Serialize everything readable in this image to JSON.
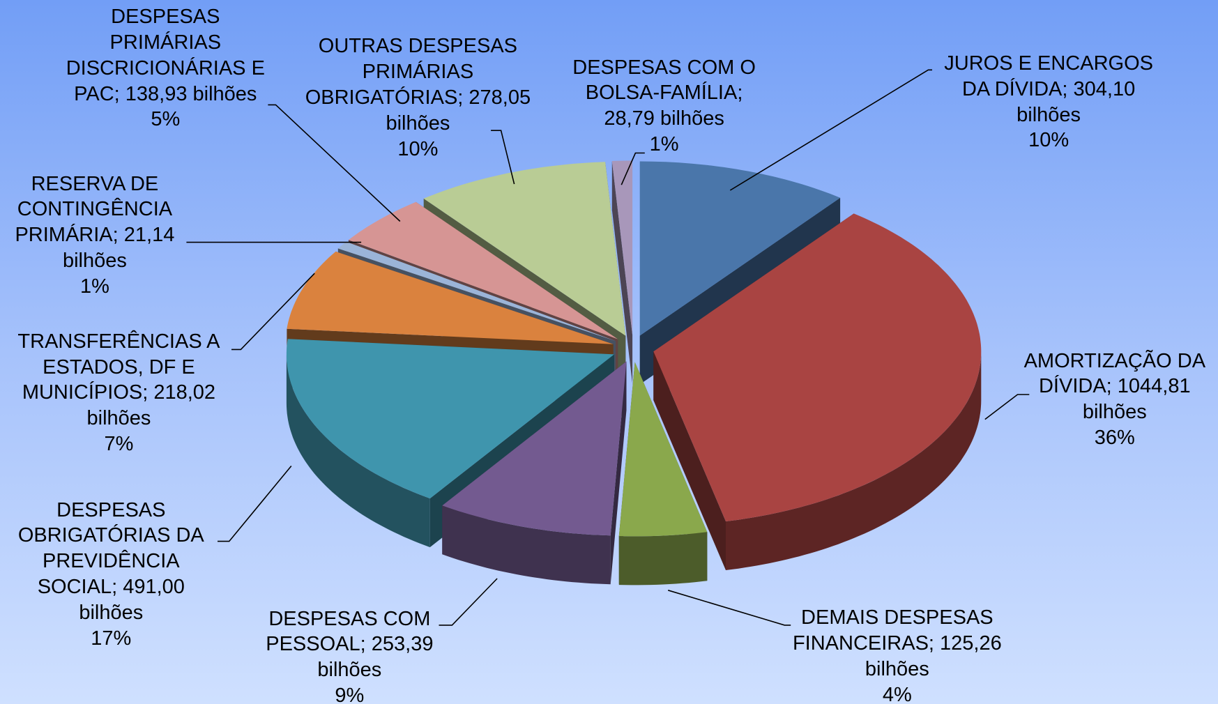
{
  "chart_data": {
    "type": "pie",
    "categories": [
      "JUROS E ENCARGOS DA DÍVIDA",
      "AMORTIZAÇÃO DA DÍVIDA",
      "DEMAIS DESPESAS FINANCEIRAS",
      "DESPESAS COM PESSOAL",
      "DESPESAS OBRIGATÓRIAS DA PREVIDÊNCIA SOCIAL",
      "TRANSFERÊNCIAS A ESTADOS, DF E MUNICÍPIOS",
      "RESERVA DE CONTINGÊNCIA PRIMÁRIA",
      "DESPESAS PRIMÁRIAS DISCRICIONÁRIAS E PAC",
      "OUTRAS DESPESAS PRIMÁRIAS OBRIGATÓRIAS",
      "DESPESAS COM O BOLSA-FAMÍLIA"
    ],
    "separator": ";",
    "values": [
      304.1,
      1044.81,
      125.26,
      253.39,
      491.0,
      218.02,
      21.14,
      138.93,
      278.05,
      28.79
    ],
    "value_labels": [
      "304,10 bilhões",
      "1044,81 bilhões",
      "125,26 bilhões",
      "253,39 bilhões",
      "491,00 bilhões",
      "218,02 bilhões",
      "21,14 bilhões",
      "138,93 bilhões",
      "278,05 bilhões",
      "28,79 bilhões"
    ],
    "percentages": [
      10,
      36,
      4,
      9,
      17,
      7,
      1,
      5,
      10,
      1
    ],
    "percentage_labels": [
      "10%",
      "36%",
      "4%",
      "9%",
      "17%",
      "7%",
      "1%",
      "5%",
      "10%",
      "1%"
    ],
    "colors": [
      "#4a76aa",
      "#a94442",
      "#8aa84c",
      "#735a90",
      "#3f95ad",
      "#da823e",
      "#9bb4d8",
      "#d69594",
      "#b9cc95",
      "#a897ba"
    ]
  }
}
